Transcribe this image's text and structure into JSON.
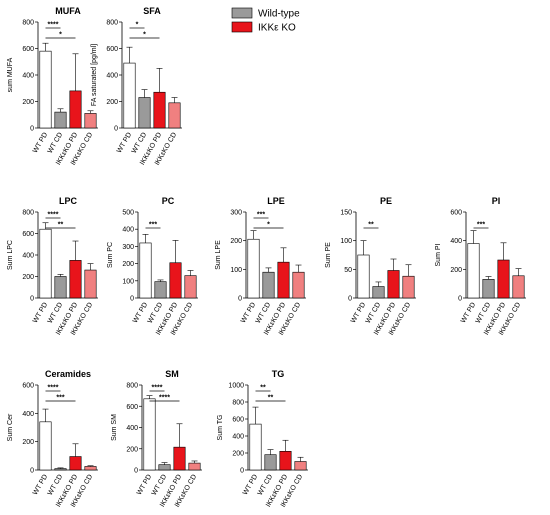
{
  "legend": [
    {
      "name": "Wild-type",
      "color": "#9a9a9a"
    },
    {
      "name": "IKKε KO",
      "color": "#e8141b"
    }
  ],
  "chart_data": [
    {
      "type": "bar",
      "title": "MUFA",
      "ylabel": "sum MUFA",
      "categories": [
        "WT PD",
        "WT CD",
        "IKKεKO PD",
        "IKKεKO CD"
      ],
      "colors": [
        "#ffffff",
        "#9a9a9a",
        "#e8141b",
        "#f08080"
      ],
      "values": [
        580,
        120,
        280,
        110
      ],
      "errors": [
        60,
        25,
        280,
        20
      ],
      "ylim": [
        0,
        800
      ],
      "yticks": [
        0,
        200,
        400,
        600,
        800
      ],
      "significance": [
        {
          "text": "****",
          "groups": [
            0,
            1
          ]
        },
        {
          "text": "*",
          "groups": [
            0,
            2
          ]
        }
      ]
    },
    {
      "type": "bar",
      "title": "SFA",
      "ylabel": "FA saturated [pg/ml]",
      "categories": [
        "WT PD",
        "WT CD",
        "IKKεKO PD",
        "IKKεKO CD"
      ],
      "colors": [
        "#ffffff",
        "#9a9a9a",
        "#e8141b",
        "#f08080"
      ],
      "values": [
        490,
        230,
        270,
        190
      ],
      "errors": [
        120,
        60,
        180,
        40
      ],
      "ylim": [
        0,
        800
      ],
      "yticks": [
        0,
        200,
        400,
        600,
        800
      ],
      "significance": [
        {
          "text": "*",
          "groups": [
            0,
            1
          ]
        },
        {
          "text": "*",
          "groups": [
            0,
            2
          ]
        }
      ]
    },
    {
      "type": "bar",
      "title": "LPC",
      "ylabel": "Sum LPC",
      "categories": [
        "WT PD",
        "WT CD",
        "IKKεKO PD",
        "IKKεKO CD"
      ],
      "colors": [
        "#ffffff",
        "#9a9a9a",
        "#e8141b",
        "#f08080"
      ],
      "values": [
        640,
        200,
        350,
        260
      ],
      "errors": [
        60,
        20,
        180,
        60
      ],
      "ylim": [
        0,
        800
      ],
      "yticks": [
        0,
        200,
        400,
        600,
        800
      ],
      "significance": [
        {
          "text": "****",
          "groups": [
            0,
            1
          ]
        },
        {
          "text": "**",
          "groups": [
            0,
            2
          ]
        }
      ]
    },
    {
      "type": "bar",
      "title": "PC",
      "ylabel": "Sum PC",
      "categories": [
        "WT PD",
        "WT CD",
        "IKKεKO PD",
        "IKKεKO CD"
      ],
      "colors": [
        "#ffffff",
        "#9a9a9a",
        "#e8141b",
        "#f08080"
      ],
      "values": [
        320,
        95,
        205,
        130
      ],
      "errors": [
        50,
        10,
        130,
        30
      ],
      "ylim": [
        0,
        500
      ],
      "yticks": [
        0,
        100,
        200,
        300,
        400,
        500
      ],
      "significance": [
        {
          "text": "***",
          "groups": [
            0,
            1
          ]
        }
      ]
    },
    {
      "type": "bar",
      "title": "LPE",
      "ylabel": "Sum LPE",
      "categories": [
        "WT PD",
        "WT CD",
        "IKKεKO PD",
        "IKKεKO CD"
      ],
      "colors": [
        "#ffffff",
        "#9a9a9a",
        "#e8141b",
        "#f08080"
      ],
      "values": [
        205,
        90,
        125,
        90
      ],
      "errors": [
        30,
        15,
        50,
        25
      ],
      "ylim": [
        0,
        300
      ],
      "yticks": [
        0,
        100,
        200,
        300
      ],
      "significance": [
        {
          "text": "***",
          "groups": [
            0,
            1
          ]
        },
        {
          "text": "*",
          "groups": [
            0,
            2
          ]
        }
      ]
    },
    {
      "type": "bar",
      "title": "PE",
      "ylabel": "Sum PE",
      "categories": [
        "WT PD",
        "WT CD",
        "IKKεKO PD",
        "IKKεKO CD"
      ],
      "colors": [
        "#ffffff",
        "#9a9a9a",
        "#e8141b",
        "#f08080"
      ],
      "values": [
        75,
        20,
        48,
        38
      ],
      "errors": [
        25,
        8,
        20,
        20
      ],
      "ylim": [
        0,
        150
      ],
      "yticks": [
        0,
        50,
        100,
        150
      ],
      "significance": [
        {
          "text": "**",
          "groups": [
            0,
            1
          ]
        }
      ]
    },
    {
      "type": "bar",
      "title": "PI",
      "ylabel": "Sum PI",
      "categories": [
        "WT PD",
        "WT CD",
        "IKKεKO PD",
        "IKKεKO CD"
      ],
      "colors": [
        "#ffffff",
        "#9a9a9a",
        "#e8141b",
        "#f08080"
      ],
      "values": [
        380,
        130,
        265,
        155
      ],
      "errors": [
        90,
        20,
        120,
        50
      ],
      "ylim": [
        0,
        600
      ],
      "yticks": [
        0,
        200,
        400,
        600
      ],
      "significance": [
        {
          "text": "***",
          "groups": [
            0,
            1
          ]
        }
      ]
    },
    {
      "type": "bar",
      "title": "Ceramides",
      "ylabel": "Sum Cer",
      "categories": [
        "WT PD",
        "WT CD",
        "IKKεKO PD",
        "IKKεKO CD"
      ],
      "colors": [
        "#ffffff",
        "#9a9a9a",
        "#e8141b",
        "#f08080"
      ],
      "values": [
        340,
        10,
        95,
        25
      ],
      "errors": [
        90,
        5,
        90,
        5
      ],
      "ylim": [
        0,
        600
      ],
      "yticks": [
        0,
        200,
        400,
        600
      ],
      "significance": [
        {
          "text": "****",
          "groups": [
            0,
            1
          ]
        },
        {
          "text": "***",
          "groups": [
            0,
            2
          ]
        }
      ]
    },
    {
      "type": "bar",
      "title": "SM",
      "ylabel": "Sum SM",
      "categories": [
        "WT PD",
        "WT CD",
        "IKKεKO PD",
        "IKKεKO CD"
      ],
      "colors": [
        "#ffffff",
        "#9a9a9a",
        "#e8141b",
        "#f08080"
      ],
      "values": [
        670,
        50,
        215,
        65
      ],
      "errors": [
        30,
        20,
        220,
        20
      ],
      "ylim": [
        0,
        800
      ],
      "yticks": [
        0,
        200,
        400,
        600,
        800
      ],
      "significance": [
        {
          "text": "****",
          "groups": [
            0,
            1
          ]
        },
        {
          "text": "****",
          "groups": [
            0,
            2
          ]
        }
      ]
    },
    {
      "type": "bar",
      "title": "TG",
      "ylabel": "Sum TG",
      "categories": [
        "WT PD",
        "WT CD",
        "IKKεKO PD",
        "IKKεKO CD"
      ],
      "colors": [
        "#ffffff",
        "#9a9a9a",
        "#e8141b",
        "#f08080"
      ],
      "values": [
        540,
        180,
        220,
        100
      ],
      "errors": [
        200,
        60,
        130,
        50
      ],
      "ylim": [
        0,
        1000
      ],
      "yticks": [
        0,
        200,
        400,
        600,
        800,
        1000
      ],
      "significance": [
        {
          "text": "**",
          "groups": [
            0,
            1
          ]
        },
        {
          "text": "**",
          "groups": [
            0,
            2
          ]
        }
      ]
    }
  ]
}
